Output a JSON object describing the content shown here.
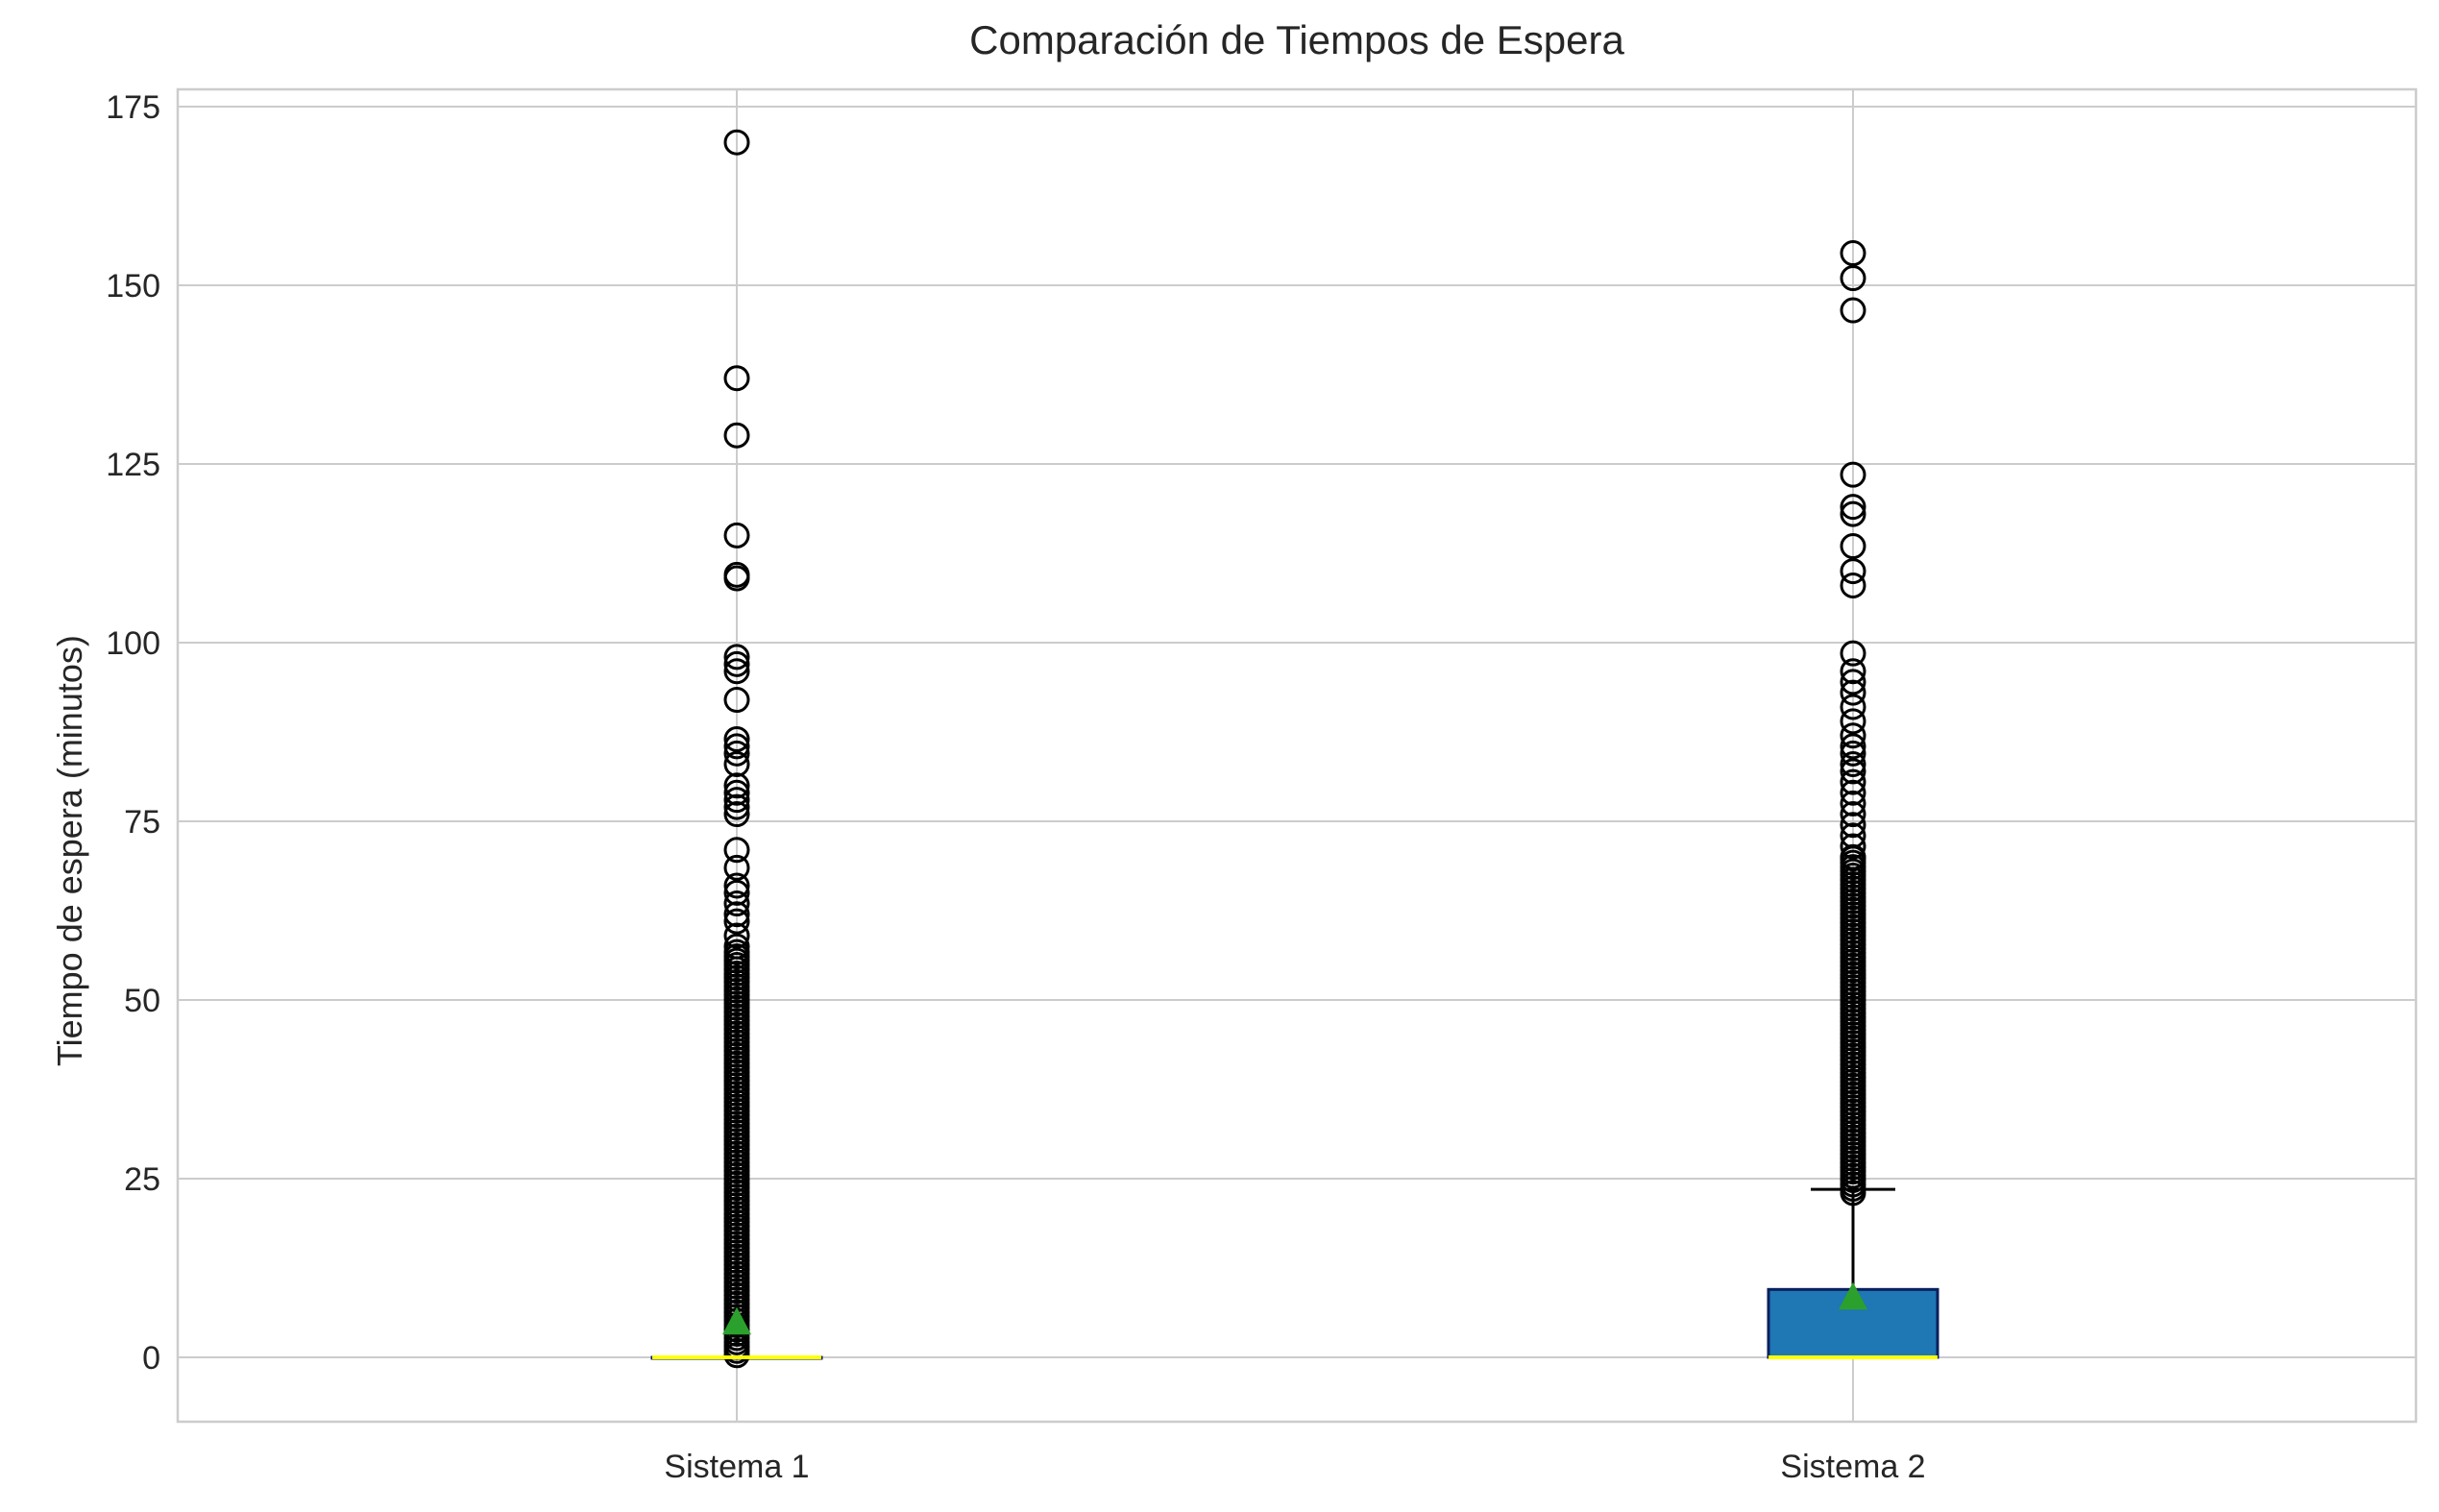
{
  "chart_data": {
    "type": "boxplot",
    "title": "Comparación de Tiempos de Espera",
    "xlabel": "",
    "ylabel": "Tiempo de espera (minutos)",
    "categories": [
      "Sistema 1",
      "Sistema 2"
    ],
    "ylim": [
      -8,
      178
    ],
    "yticks": [
      0,
      25,
      50,
      75,
      100,
      125,
      150,
      175
    ],
    "grid": true,
    "colors": {
      "box_fill": "#1f77b4",
      "box_edge": "#0a1f5c",
      "median": "#ffff00",
      "mean_marker": "#2ca02c",
      "grid": "#cccccc",
      "flier_edge": "#000000"
    },
    "boxes": [
      {
        "name": "Sistema 1",
        "whisker_low": 0,
        "q1": 0,
        "median": 0,
        "q3": 0,
        "whisker_high": 0,
        "mean": 5,
        "dense_fliers_range": [
          0.3,
          57
        ],
        "fliers": [
          170,
          137,
          129,
          115,
          109.5,
          109,
          98,
          97,
          96,
          92,
          86.5,
          85.5,
          84.5,
          83,
          80,
          79,
          78,
          77,
          76,
          71,
          68.5,
          66,
          65,
          63.5,
          62,
          61,
          59,
          57.5
        ]
      },
      {
        "name": "Sistema 2",
        "whisker_low": 0,
        "q1": 0,
        "median": 0,
        "q3": 9.5,
        "whisker_high": 23.5,
        "mean": 8.5,
        "dense_fliers_range": [
          23,
          70
        ],
        "fliers": [
          154.5,
          151,
          146.5,
          123.5,
          119,
          118,
          113.5,
          110,
          108,
          98.5,
          96,
          94.5,
          93,
          91,
          89,
          87,
          85.5,
          84.5,
          83,
          82,
          80.5,
          79,
          77.5,
          76,
          74.5,
          73,
          71.5,
          70
        ]
      }
    ]
  }
}
